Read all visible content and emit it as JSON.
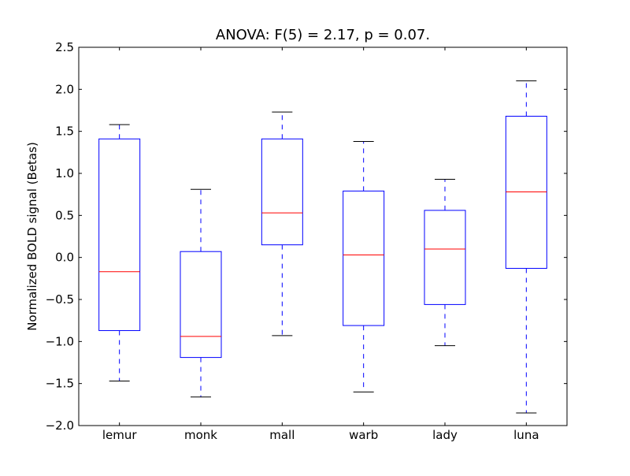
{
  "chart_data": {
    "type": "boxplot",
    "title": "ANOVA: F(5) = 2.17, p = 0.07.",
    "xlabel": "",
    "ylabel": "Normalized BOLD signal (Betas)",
    "ylim": [
      -2.0,
      2.5
    ],
    "yticks": [
      -2.0,
      -1.5,
      -1.0,
      -0.5,
      0.0,
      0.5,
      1.0,
      1.5,
      2.0,
      2.5
    ],
    "ytick_labels": [
      "−2.0",
      "−1.5",
      "−1.0",
      "−0.5",
      "0.0",
      "0.5",
      "1.0",
      "1.5",
      "2.0",
      "2.5"
    ],
    "grid": false,
    "categories": [
      "lemur",
      "monk",
      "mall",
      "warb",
      "lady",
      "luna"
    ],
    "boxes": [
      {
        "whisker_low": -1.47,
        "q1": -0.87,
        "median": -0.17,
        "q3": 1.41,
        "whisker_high": 1.58
      },
      {
        "whisker_low": -1.66,
        "q1": -1.19,
        "median": -0.94,
        "q3": 0.07,
        "whisker_high": 0.81
      },
      {
        "whisker_low": -0.93,
        "q1": 0.15,
        "median": 0.53,
        "q3": 1.41,
        "whisker_high": 1.73
      },
      {
        "whisker_low": -1.6,
        "q1": -0.81,
        "median": 0.03,
        "q3": 0.79,
        "whisker_high": 1.38
      },
      {
        "whisker_low": -1.05,
        "q1": -0.56,
        "median": 0.1,
        "q3": 0.56,
        "whisker_high": 0.93
      },
      {
        "whisker_low": -1.85,
        "q1": -0.13,
        "median": 0.78,
        "q3": 1.68,
        "whisker_high": 2.1
      }
    ],
    "colors": {
      "box": "#0000ff",
      "median": "#ff0000",
      "whisker": "#0000ff",
      "cap": "#000000"
    }
  }
}
